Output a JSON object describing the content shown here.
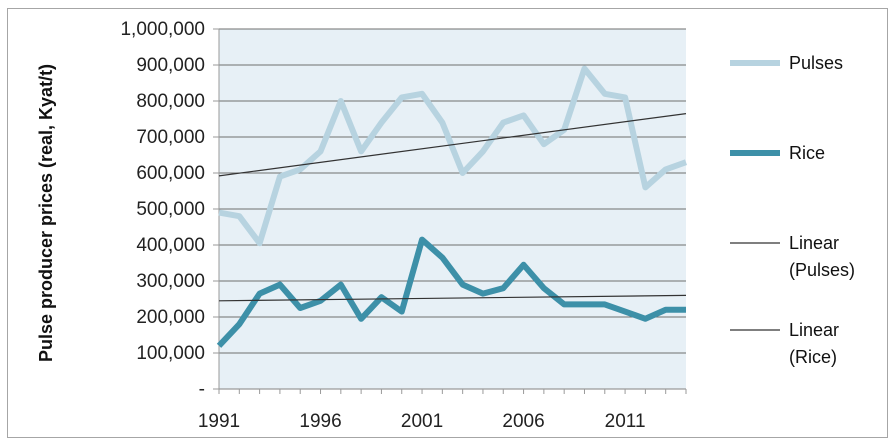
{
  "chart_data": {
    "type": "line",
    "title": "",
    "xlabel": "",
    "ylabel": "Pulse producer prices (real, Kyat/t)",
    "x": [
      1991,
      1992,
      1993,
      1994,
      1995,
      1996,
      1997,
      1998,
      1999,
      2000,
      2001,
      2002,
      2003,
      2004,
      2005,
      2006,
      2007,
      2008,
      2009,
      2010,
      2011,
      2012,
      2013,
      2014
    ],
    "xticks": [
      "1991",
      "1996",
      "2001",
      "2006",
      "2011"
    ],
    "xticks_values": [
      1991,
      1996,
      2001,
      2006,
      2011
    ],
    "xlim": [
      1991,
      2014
    ],
    "ylim": [
      0,
      1000000
    ],
    "yticks": [
      "-",
      "100,000",
      "200,000",
      "300,000",
      "400,000",
      "500,000",
      "600,000",
      "700,000",
      "800,000",
      "900,000",
      "1,000,000"
    ],
    "yticks_values": [
      0,
      100000,
      200000,
      300000,
      400000,
      500000,
      600000,
      700000,
      800000,
      900000,
      1000000
    ],
    "grid": "horizontal",
    "legend_position": "right",
    "series": [
      {
        "name": "Pulses",
        "color": "#b7d3e0",
        "style": "thick",
        "values": [
          490000,
          480000,
          405000,
          590000,
          610000,
          660000,
          800000,
          660000,
          740000,
          810000,
          820000,
          740000,
          600000,
          660000,
          740000,
          760000,
          680000,
          720000,
          890000,
          820000,
          810000,
          560000,
          610000,
          630000
        ]
      },
      {
        "name": "Rice",
        "color": "#3d90a8",
        "style": "thick",
        "values": [
          120000,
          180000,
          265000,
          290000,
          225000,
          245000,
          290000,
          195000,
          255000,
          215000,
          415000,
          365000,
          290000,
          265000,
          280000,
          345000,
          280000,
          235000,
          235000,
          235000,
          215000,
          195000,
          220000,
          220000
        ]
      },
      {
        "name": "Linear\n(Pulses)",
        "color": "#333333",
        "style": "thin",
        "trend": true,
        "values_endpoints": [
          592000,
          765000
        ]
      },
      {
        "name": "Linear\n(Rice)",
        "color": "#333333",
        "style": "thin",
        "trend": true,
        "values_endpoints": [
          245000,
          260000
        ]
      }
    ],
    "colors": {
      "plot_bg": "#e7f0f6",
      "grid": "#6f6f6f",
      "axis": "#9a9a9a"
    }
  }
}
